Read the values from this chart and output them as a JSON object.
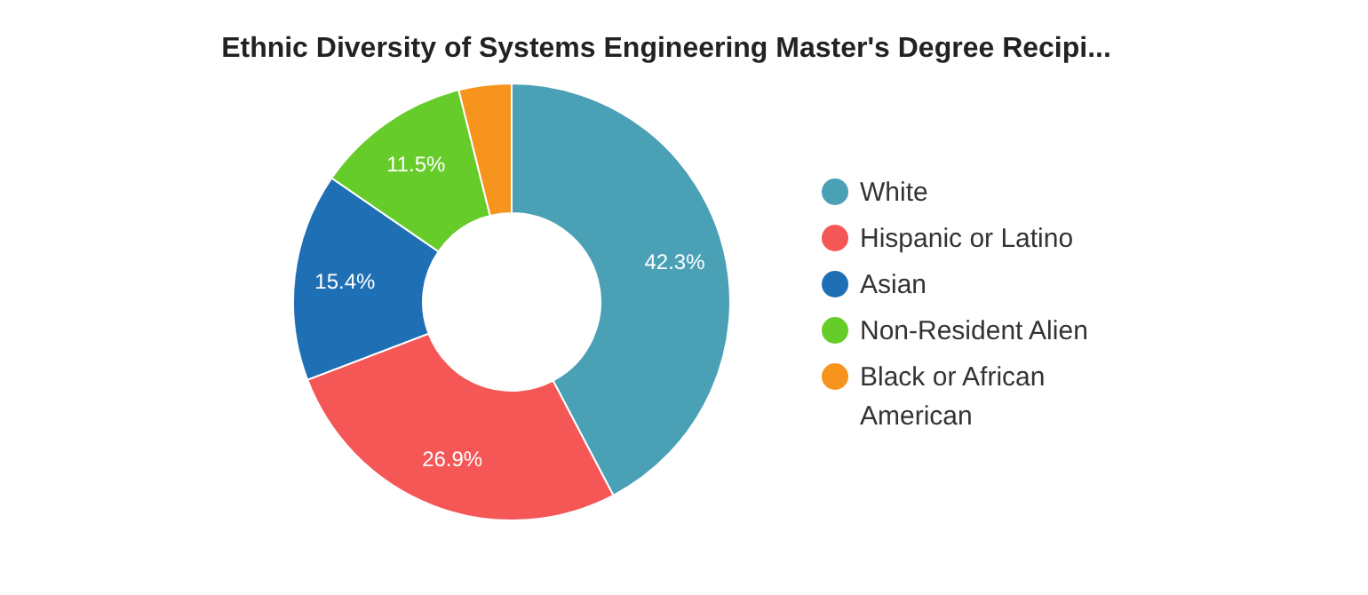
{
  "chart_data": {
    "type": "donut",
    "title": "Ethnic Diversity of Systems Engineering Master's Degree Recipi...",
    "categories": [
      "White",
      "Hispanic or Latino",
      "Asian",
      "Non-Resident Alien",
      "Black or African American"
    ],
    "values": [
      42.3,
      26.9,
      15.4,
      11.5,
      3.9
    ],
    "value_labels": [
      "42.3%",
      "26.9%",
      "15.4%",
      "11.5%",
      null
    ],
    "colors": [
      "#4aa0b5",
      "#f55656",
      "#1f6fb5",
      "#66cc29",
      "#f7941d"
    ],
    "legend": "right"
  }
}
